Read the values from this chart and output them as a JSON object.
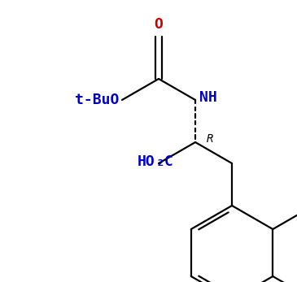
{
  "bg_color": "#ffffff",
  "line_color": "#000000",
  "blue": "#0000cc",
  "red": "#cc0000",
  "lw": 1.6,
  "figsize": [
    3.65,
    3.47
  ],
  "dpi": 100,
  "xlim": [
    0,
    365
  ],
  "ylim": [
    0,
    347
  ]
}
